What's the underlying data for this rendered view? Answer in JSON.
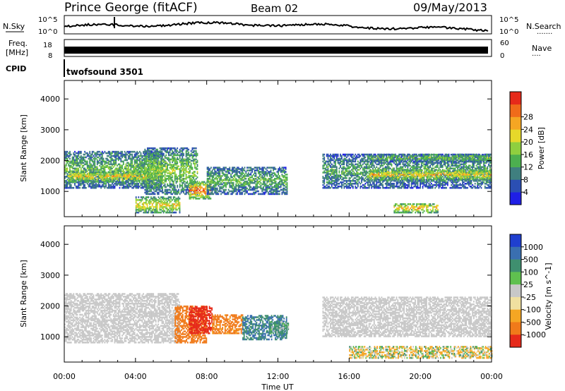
{
  "header": {
    "station": "Prince George (fitACF)",
    "beam": "Beam 02",
    "date": "09/May/2013"
  },
  "sky_panel": {
    "label": "N.Sky",
    "right_label": "N.Search",
    "right_dots": ".......",
    "left_ticks": [
      "10^5",
      "10^0"
    ],
    "right_ticks": [
      "10^5",
      "10^0"
    ]
  },
  "freq_panel": {
    "label_line1": "Freq.",
    "label_line2": "[MHz]",
    "left_ticks": [
      "18",
      "8"
    ],
    "right_ticks": [
      "60",
      "0"
    ],
    "right_label": "Nave",
    "right_dots": "...."
  },
  "cpid": {
    "label": "CPID",
    "value": "twofsound 3501"
  },
  "chart_data": [
    {
      "type": "heatmap",
      "title": "",
      "variable": "Power",
      "xlabel": "",
      "ylabel": "Slant Range [km]",
      "xlim": [
        0,
        24
      ],
      "ylim": [
        180,
        4600
      ],
      "y_ticks": [
        1000,
        2000,
        3000,
        4000
      ],
      "colorbar": {
        "label": "Power [dB]",
        "ticks": [
          "4",
          "8",
          "12",
          "16",
          "20",
          "24",
          "28"
        ],
        "colors": [
          "#1f1fe6",
          "#2b4fb3",
          "#3f7f7f",
          "#4caf4f",
          "#8fcf3f",
          "#e6d82a",
          "#f5a623",
          "#f06b1a",
          "#e62a1a"
        ]
      },
      "bands": [
        {
          "t_start": 0.0,
          "t_end": 5.5,
          "r_low": 1100,
          "r_high": 2300,
          "level": 14
        },
        {
          "t_start": 0.2,
          "t_end": 5.0,
          "r_low": 1300,
          "r_high": 1650,
          "level": 22
        },
        {
          "t_start": 4.5,
          "t_end": 7.5,
          "r_low": 900,
          "r_high": 2400,
          "level": 16
        },
        {
          "t_start": 7.0,
          "t_end": 8.2,
          "r_low": 750,
          "r_high": 1300,
          "level": 27
        },
        {
          "t_start": 8.0,
          "t_end": 12.5,
          "r_low": 900,
          "r_high": 1800,
          "level": 13
        },
        {
          "t_start": 4.0,
          "t_end": 6.5,
          "r_low": 300,
          "r_high": 800,
          "level": 21
        },
        {
          "t_start": 14.5,
          "t_end": 24.0,
          "r_low": 1100,
          "r_high": 2200,
          "level": 12
        },
        {
          "t_start": 17.0,
          "t_end": 24.0,
          "r_low": 1350,
          "r_high": 1700,
          "level": 22
        },
        {
          "t_start": 17.0,
          "t_end": 24.0,
          "r_low": 1950,
          "r_high": 2200,
          "level": 15
        },
        {
          "t_start": 18.5,
          "t_end": 21.0,
          "r_low": 300,
          "r_high": 600,
          "level": 23
        }
      ]
    },
    {
      "type": "heatmap",
      "title": "",
      "variable": "Velocity",
      "xlabel": "Time UT",
      "ylabel": "Slant Range [km]",
      "xlim": [
        0,
        24
      ],
      "ylim": [
        180,
        4600
      ],
      "y_ticks": [
        1000,
        2000,
        3000,
        4000
      ],
      "x_ticks": [
        "00:00",
        "04:00",
        "08:00",
        "12:00",
        "16:00",
        "20:00",
        "00:00"
      ],
      "colorbar": {
        "label": "Velocity [m s^-1]",
        "ticks": [
          "1000",
          "500",
          "100",
          "25",
          "-25",
          "-100",
          "-500",
          "-1000"
        ],
        "colors": [
          "#1f3fcf",
          "#3a6fb0",
          "#3f8f6f",
          "#5fc04f",
          "#c8c8c8",
          "#f0e0a0",
          "#f5a623",
          "#f07a1a",
          "#e62a1a"
        ]
      },
      "bands": [
        {
          "t_start": 0.0,
          "t_end": 6.5,
          "r_low": 800,
          "r_high": 2400,
          "vel": 0
        },
        {
          "t_start": 6.2,
          "t_end": 8.0,
          "r_low": 800,
          "r_high": 2000,
          "vel": -600
        },
        {
          "t_start": 7.0,
          "t_end": 8.3,
          "r_low": 1100,
          "r_high": 2000,
          "vel": -1000
        },
        {
          "t_start": 8.3,
          "t_end": 10.0,
          "r_low": 1100,
          "r_high": 1700,
          "vel": -400
        },
        {
          "t_start": 10.0,
          "t_end": 12.5,
          "r_low": 900,
          "r_high": 1700,
          "vel": 300
        },
        {
          "t_start": 11.5,
          "t_end": 12.6,
          "r_low": 1100,
          "r_high": 1500,
          "vel": 100
        },
        {
          "t_start": 14.5,
          "t_end": 24.0,
          "r_low": 1000,
          "r_high": 2300,
          "vel": 0
        },
        {
          "t_start": 16.0,
          "t_end": 24.0,
          "r_low": 300,
          "r_high": 700,
          "vel": -30
        }
      ]
    }
  ]
}
